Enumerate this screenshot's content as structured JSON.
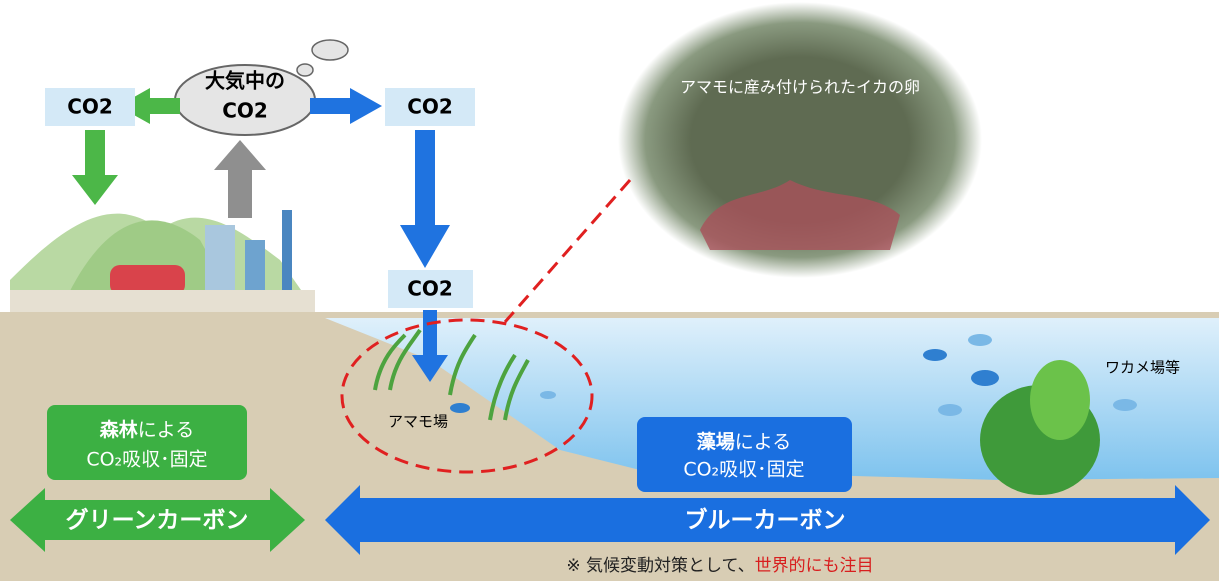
{
  "cloud": {
    "line1": "大気中の",
    "line2": "CO2"
  },
  "co2_boxes": [
    "CO2",
    "CO2",
    "CO2"
  ],
  "photo_caption": "アマモに産み付けられたイカの卵",
  "labels": {
    "eelgrass": "アマモ場",
    "wakame": "ワカメ場等"
  },
  "green_box": {
    "strong": "森林",
    "rest": "による",
    "line2": "CO₂吸収･固定"
  },
  "blue_box": {
    "strong": "藻場",
    "rest": "による",
    "line2": "CO₂吸収･固定"
  },
  "arrows": {
    "green": "グリーンカーボン",
    "blue": "ブルーカーボン"
  },
  "note": {
    "text": "※ 気候変動対策として、",
    "highlight": "世界的にも注目"
  }
}
